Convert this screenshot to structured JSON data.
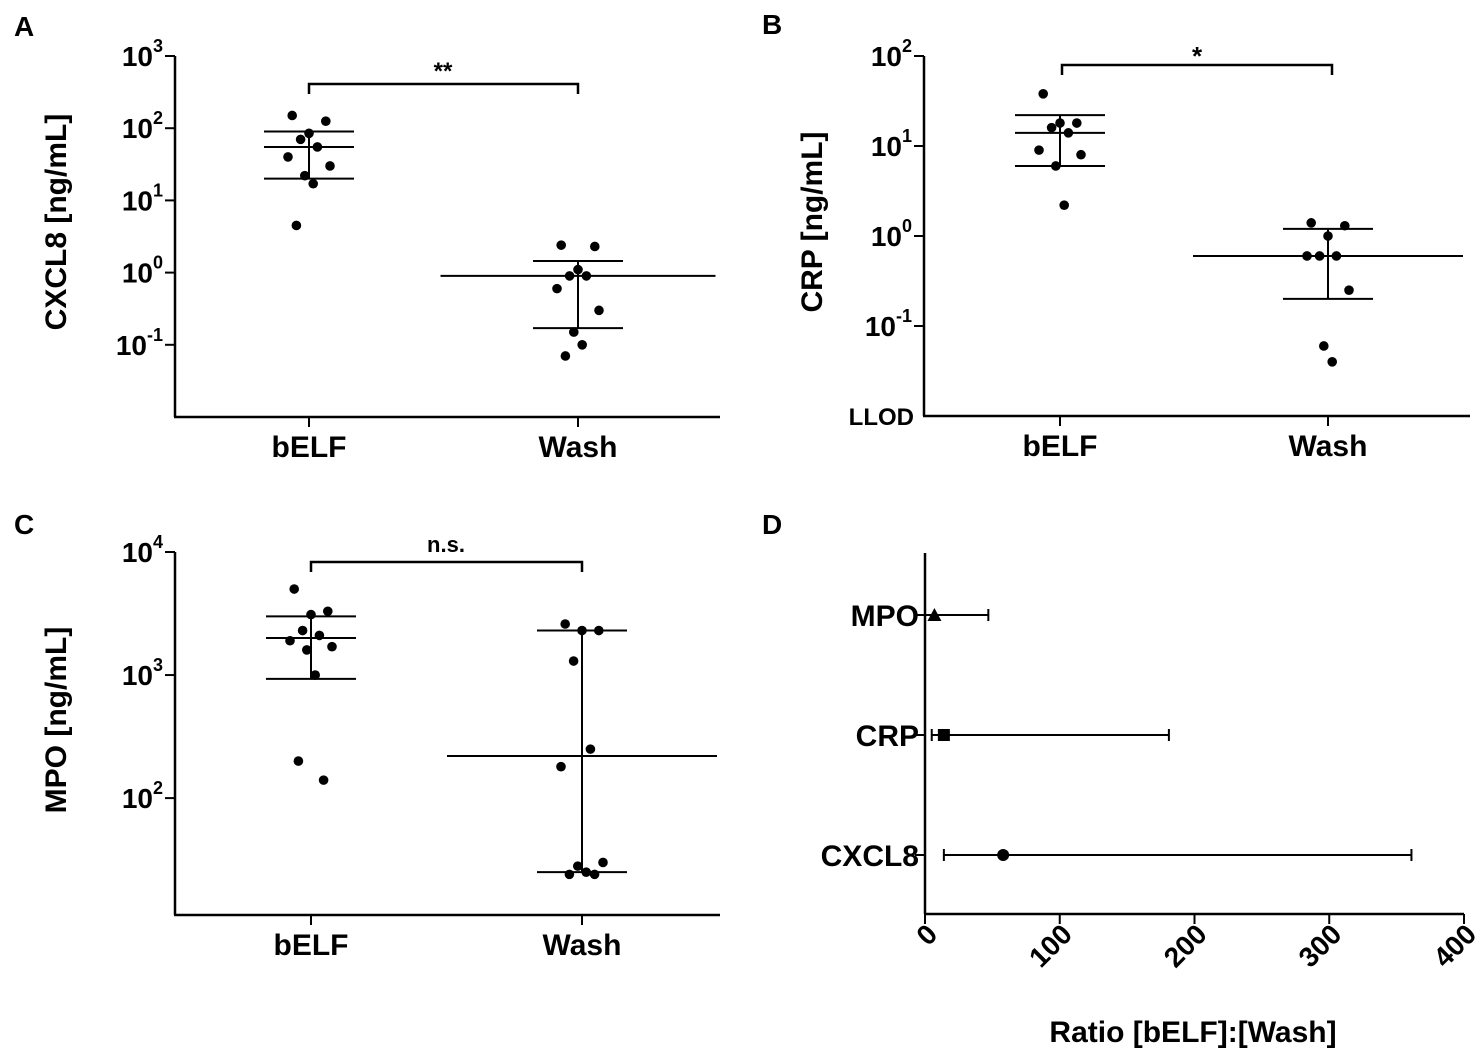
{
  "chart_data": [
    {
      "panel": "A",
      "type": "scatter",
      "scale": "log",
      "categories": [
        "bELF",
        "Wash"
      ],
      "ylabel": "CXCL8 [ng/mL]",
      "ylim_exp": [
        -2,
        3
      ],
      "yticks": [
        {
          "exp": 3
        },
        {
          "exp": 2
        },
        {
          "exp": 1
        },
        {
          "exp": 0
        },
        {
          "exp": -1
        }
      ],
      "tick_base": "10",
      "series": [
        {
          "name": "bELF",
          "values": [
            150,
            125,
            85,
            70,
            55,
            40,
            30,
            22,
            17,
            4.5
          ],
          "median": 55,
          "q1": 20,
          "q3": 90
        },
        {
          "name": "Wash",
          "values": [
            2.4,
            2.3,
            1.1,
            0.9,
            0.9,
            0.6,
            0.3,
            0.15,
            0.1,
            0.07
          ],
          "median": 0.9,
          "q1": 0.17,
          "q3": 1.45
        }
      ],
      "significance": "**"
    },
    {
      "panel": "B",
      "type": "scatter",
      "scale": "log",
      "categories": [
        "bELF",
        "Wash"
      ],
      "ylabel": "CRP [ng/mL]",
      "ylim_exp": [
        -2,
        2
      ],
      "yticks": [
        {
          "exp": 2
        },
        {
          "exp": 1
        },
        {
          "exp": 0
        },
        {
          "exp": -1
        }
      ],
      "tick_base": "10",
      "extra_tick_label": "LLOD",
      "series": [
        {
          "name": "bELF",
          "values": [
            38,
            18,
            18,
            16,
            14,
            9,
            8,
            6,
            2.2
          ],
          "median": 14,
          "q1": 6,
          "q3": 22
        },
        {
          "name": "Wash",
          "values": [
            1.4,
            1.3,
            1.0,
            0.6,
            0.6,
            0.6,
            0.25,
            0.06,
            0.04
          ],
          "median": 0.6,
          "q1": 0.2,
          "q3": 1.2
        }
      ],
      "significance": "*"
    },
    {
      "panel": "C",
      "type": "scatter",
      "scale": "log",
      "categories": [
        "bELF",
        "Wash"
      ],
      "ylabel": "MPO [ng/mL]",
      "ylim_exp": [
        1.05,
        4
      ],
      "yticks": [
        {
          "exp": 4
        },
        {
          "exp": 3
        },
        {
          "exp": 2
        }
      ],
      "tick_base": "10",
      "series": [
        {
          "name": "bELF",
          "values": [
            5000,
            3300,
            3100,
            2300,
            2100,
            1900,
            1700,
            1600,
            1000,
            200,
            140
          ],
          "median": 2000,
          "q1": 930,
          "q3": 3000
        },
        {
          "name": "Wash",
          "values": [
            2600,
            2300,
            2300,
            1300,
            250,
            180,
            30,
            28,
            25,
            24,
            24
          ],
          "median": 220,
          "q1": 25,
          "q3": 2300
        }
      ],
      "significance": "n.s."
    },
    {
      "panel": "D",
      "type": "scatter",
      "orientation": "horizontal",
      "categories": [
        "MPO",
        "CRP",
        "CXCL8"
      ],
      "xlabel": "Ratio [bELF]:[Wash]",
      "xlim": [
        0,
        400
      ],
      "xticks": [
        0,
        100,
        200,
        300,
        400
      ],
      "series": [
        {
          "name": "MPO",
          "marker": "triangle",
          "value": 7,
          "ci": [
            0,
            47
          ]
        },
        {
          "name": "CRP",
          "marker": "square",
          "value": 14,
          "ci": [
            5,
            181
          ]
        },
        {
          "name": "CXCL8",
          "marker": "circle",
          "value": 58,
          "ci": [
            14,
            361
          ]
        }
      ]
    }
  ]
}
